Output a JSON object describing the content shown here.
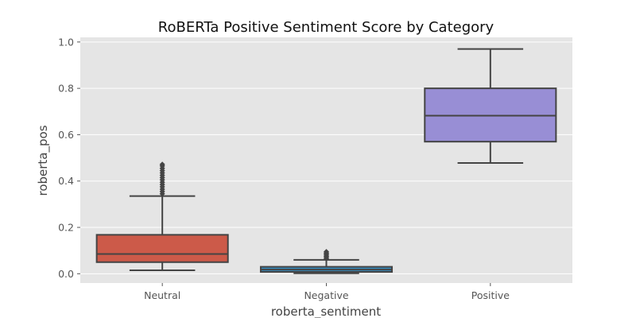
{
  "chart_data": {
    "type": "box",
    "title": "RoBERTa Positive Sentiment Score by Category",
    "xlabel": "roberta_sentiment",
    "ylabel": "roberta_pos",
    "ylim": [
      -0.04,
      1.02
    ],
    "yticks": [
      "0.0",
      "0.2",
      "0.4",
      "0.6",
      "0.8",
      "1.0"
    ],
    "grid": true,
    "categories": [
      "Neutral",
      "Negative",
      "Positive"
    ],
    "boxes": [
      {
        "category": "Neutral",
        "color": "#CC5A49",
        "whisker_low": 0.015,
        "q1": 0.05,
        "median": 0.085,
        "q3": 0.168,
        "whisker_high": 0.335,
        "outliers": [
          0.345,
          0.355,
          0.365,
          0.375,
          0.385,
          0.395,
          0.405,
          0.415,
          0.425,
          0.435,
          0.445,
          0.455,
          0.465,
          0.472
        ]
      },
      {
        "category": "Negative",
        "color": "#348ABD",
        "whisker_low": 0.002,
        "q1": 0.008,
        "median": 0.018,
        "q3": 0.03,
        "whisker_high": 0.06,
        "outliers": [
          0.065,
          0.07,
          0.075,
          0.08,
          0.085,
          0.09,
          0.095
        ]
      },
      {
        "category": "Positive",
        "color": "#988ED5",
        "whisker_low": 0.478,
        "q1": 0.57,
        "median": 0.682,
        "q3": 0.8,
        "whisker_high": 0.97,
        "outliers": []
      }
    ],
    "colors": {
      "background": "#E5E5E5",
      "grid": "#FFFFFF",
      "lines": "#444444"
    }
  }
}
